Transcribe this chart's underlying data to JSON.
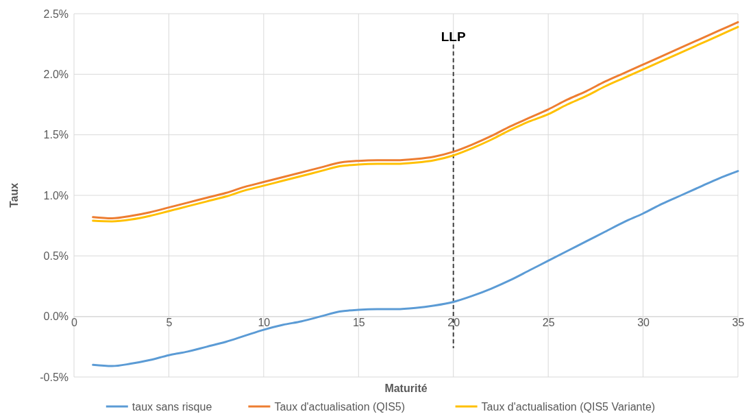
{
  "chart_data": {
    "type": "line",
    "xlabel": "Maturité",
    "ylabel": "Taux",
    "x": [
      1,
      2,
      3,
      4,
      5,
      6,
      7,
      8,
      9,
      10,
      11,
      12,
      13,
      14,
      15,
      16,
      17,
      18,
      19,
      20,
      21,
      22,
      23,
      24,
      25,
      26,
      27,
      28,
      29,
      30,
      31,
      32,
      33,
      34,
      35
    ],
    "series": [
      {
        "name": "taux sans risque",
        "color": "#5b9bd5",
        "values": [
          -0.4,
          -0.41,
          -0.39,
          -0.36,
          -0.32,
          -0.29,
          -0.25,
          -0.21,
          -0.16,
          -0.11,
          -0.07,
          -0.04,
          0.0,
          0.04,
          0.055,
          0.06,
          0.06,
          0.07,
          0.09,
          0.12,
          0.17,
          0.23,
          0.3,
          0.38,
          0.46,
          0.54,
          0.62,
          0.7,
          0.78,
          0.85,
          0.93,
          1.0,
          1.07,
          1.14,
          1.2
        ]
      },
      {
        "name": "Taux d'actualisation (QIS5)",
        "color": "#ed7d31",
        "values": [
          0.82,
          0.81,
          0.83,
          0.86,
          0.9,
          0.94,
          0.98,
          1.02,
          1.07,
          1.11,
          1.15,
          1.19,
          1.23,
          1.27,
          1.285,
          1.29,
          1.29,
          1.3,
          1.32,
          1.36,
          1.42,
          1.49,
          1.57,
          1.64,
          1.71,
          1.79,
          1.86,
          1.94,
          2.01,
          2.08,
          2.15,
          2.22,
          2.29,
          2.36,
          2.43
        ]
      },
      {
        "name": "Taux d'actualisation (QIS5 Variante)",
        "color": "#ffc000",
        "values": [
          0.79,
          0.785,
          0.8,
          0.83,
          0.87,
          0.91,
          0.95,
          0.99,
          1.04,
          1.08,
          1.12,
          1.16,
          1.2,
          1.24,
          1.255,
          1.26,
          1.26,
          1.27,
          1.29,
          1.33,
          1.39,
          1.46,
          1.54,
          1.61,
          1.67,
          1.75,
          1.82,
          1.9,
          1.97,
          2.04,
          2.11,
          2.18,
          2.25,
          2.32,
          2.39
        ]
      }
    ],
    "xlim": [
      0,
      35
    ],
    "xticks": [
      0,
      5,
      10,
      15,
      20,
      25,
      30,
      35
    ],
    "ylim": [
      -0.5,
      2.5
    ],
    "yticks": [
      {
        "value": -0.5,
        "label": "-0.5%"
      },
      {
        "value": 0,
        "label": "0.0%"
      },
      {
        "value": 0.5,
        "label": "0.5%"
      },
      {
        "value": 1,
        "label": "1.0%"
      },
      {
        "value": 1.5,
        "label": "1.5%"
      },
      {
        "value": 2,
        "label": "2.0%"
      },
      {
        "value": 2.5,
        "label": "2.5%"
      }
    ],
    "grid": true,
    "legend": "bottom",
    "marker": "none",
    "line_style": "solid",
    "ref_lines": [
      {
        "axis": "x",
        "value": 20,
        "label": "LLP",
        "color": "#404040",
        "line_style": "dashed"
      }
    ]
  }
}
